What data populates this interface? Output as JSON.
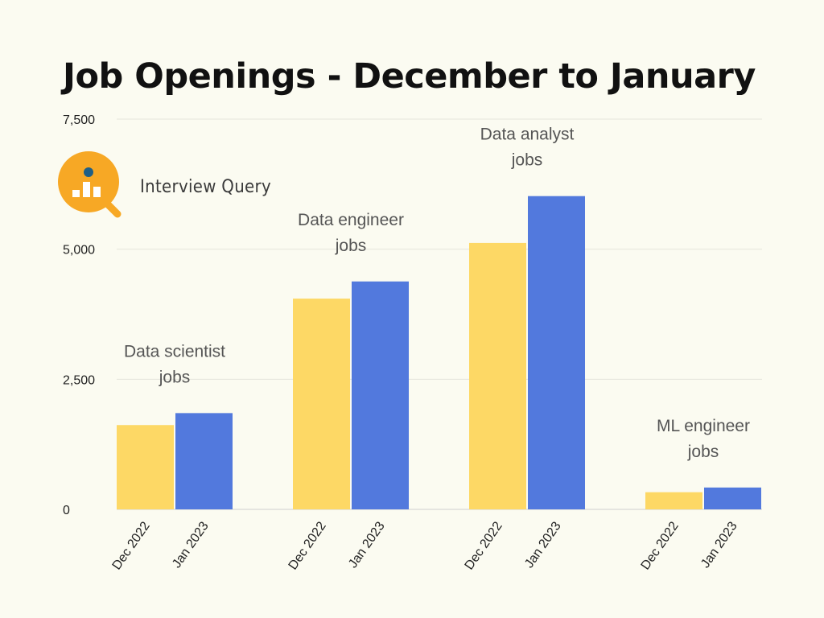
{
  "title": "Job Openings - December to January",
  "brand": {
    "name": "Interview Query",
    "icon": "magnifier-bar-chart-icon",
    "colors": {
      "circle": "#f7a825",
      "dot": "#1f5f86",
      "bars": "#ffffff"
    }
  },
  "chart_data": {
    "type": "bar",
    "title": "Job Openings - December to January",
    "xlabel": "",
    "ylabel": "",
    "ylim": [
      0,
      7500
    ],
    "yticks": [
      0,
      2500,
      5000,
      7500
    ],
    "ytick_labels": [
      "0",
      "2,500",
      "5,000",
      "7,500"
    ],
    "grid": true,
    "legend": "none",
    "groups": [
      {
        "label": "Data scientist jobs",
        "label_lines": [
          "Data scientist",
          "jobs"
        ],
        "bars": [
          {
            "tick": "Dec 2022",
            "value": 1620,
            "color": "#fdd865"
          },
          {
            "tick": "Jan 2023",
            "value": 1850,
            "color": "#5279dd"
          }
        ]
      },
      {
        "label": "Data engineer jobs",
        "label_lines": [
          "Data engineer",
          "jobs"
        ],
        "bars": [
          {
            "tick": "Dec 2022",
            "value": 4050,
            "color": "#fdd865"
          },
          {
            "tick": "Jan 2023",
            "value": 4380,
            "color": "#5279dd"
          }
        ]
      },
      {
        "label": "Data analyst jobs",
        "label_lines": [
          "Data analyst",
          "jobs"
        ],
        "bars": [
          {
            "tick": "Dec 2022",
            "value": 5120,
            "color": "#fdd865"
          },
          {
            "tick": "Jan 2023",
            "value": 6020,
            "color": "#5279dd"
          }
        ]
      },
      {
        "label": "ML engineer jobs",
        "label_lines": [
          "ML engineer",
          "jobs"
        ],
        "bars": [
          {
            "tick": "Dec 2022",
            "value": 330,
            "color": "#fdd865"
          },
          {
            "tick": "Jan 2023",
            "value": 420,
            "color": "#5279dd"
          }
        ]
      }
    ]
  }
}
